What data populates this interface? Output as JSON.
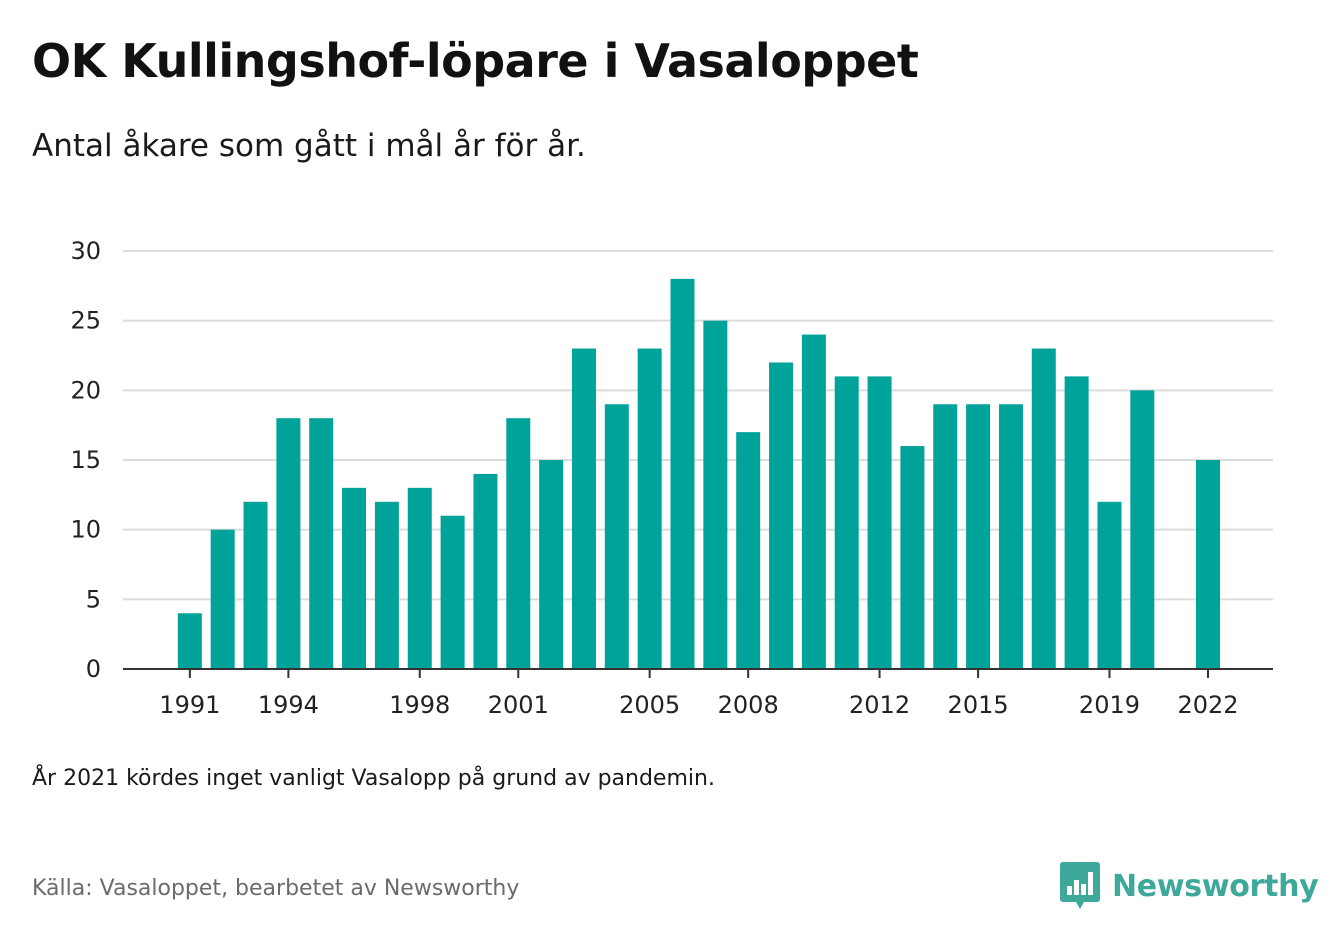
{
  "title": "OK Kullingshof-löpare i Vasaloppet",
  "subtitle": "Antal åkare som gått i mål år för år.",
  "note": "År 2021 kördes inget vanligt Vasalopp på grund av pandemin.",
  "source": "Källa: Vasaloppet, bearbetet av Newsworthy",
  "logo": {
    "text": "Newsworthy",
    "icon": "newsworthy-bar-chart-icon",
    "color": "#3ea89a"
  },
  "colors": {
    "bar": "#00a39a",
    "grid": "#dcdcdc",
    "axis": "#333333"
  },
  "chart_data": {
    "type": "bar",
    "title": "OK Kullingshof-löpare i Vasaloppet",
    "subtitle": "Antal åkare som gått i mål år för år.",
    "xlabel": "",
    "ylabel": "",
    "grid": true,
    "legend": "none",
    "ylim": [
      0,
      30
    ],
    "yticks": [
      0,
      5,
      10,
      15,
      20,
      25,
      30
    ],
    "xticks": [
      "1991",
      "1994",
      "1998",
      "2001",
      "2005",
      "2008",
      "2012",
      "2015",
      "2019",
      "2022"
    ],
    "categories": [
      "1990",
      "1991",
      "1992",
      "1993",
      "1994",
      "1995",
      "1996",
      "1997",
      "1998",
      "1999",
      "2000",
      "2001",
      "2002",
      "2003",
      "2004",
      "2005",
      "2006",
      "2007",
      "2008",
      "2009",
      "2010",
      "2011",
      "2012",
      "2013",
      "2014",
      "2015",
      "2016",
      "2017",
      "2018",
      "2019",
      "2020",
      "2021",
      "2022"
    ],
    "values": [
      null,
      4,
      10,
      12,
      18,
      18,
      13,
      12,
      13,
      11,
      14,
      18,
      15,
      23,
      19,
      23,
      28,
      25,
      17,
      22,
      24,
      21,
      21,
      16,
      19,
      19,
      19,
      23,
      21,
      12,
      20,
      null,
      15
    ]
  }
}
